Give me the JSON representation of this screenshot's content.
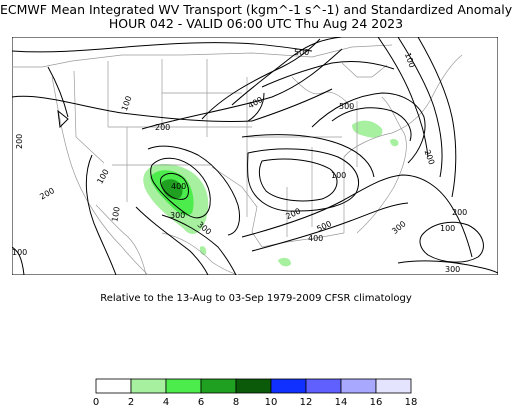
{
  "title_line1": "ECMWF Mean Integrated WV Transport (kgm^-1 s^-1) and Standardized Anomaly",
  "title_line2": "HOUR 042 - VALID 06:00 UTC Thu Aug 24 2023",
  "subtitle": "Relative to the 13-Aug to 03-Sep 1979-2009 CFSR climatology",
  "contour_labels": [
    "500",
    "100",
    "400",
    "500",
    "200",
    "200",
    "200",
    "400",
    "100",
    "100",
    "300",
    "200",
    "300",
    "400",
    "500",
    "200",
    "300",
    "100",
    "300",
    "100",
    "200",
    "100",
    "100"
  ],
  "colorbar": {
    "ticks": [
      "0",
      "2",
      "4",
      "6",
      "8",
      "10",
      "12",
      "14",
      "16",
      "18"
    ],
    "colors": [
      "#ffffff",
      "#a6f0a0",
      "#4cec4c",
      "#20a020",
      "#0a5a0a",
      "#1030ff",
      "#6060ff",
      "#a8a8ff",
      "#e4e4ff"
    ]
  },
  "anomaly_colors": {
    "light_green": "#a6f0a0",
    "green": "#4cec4c",
    "dark_green": "#20a020"
  }
}
